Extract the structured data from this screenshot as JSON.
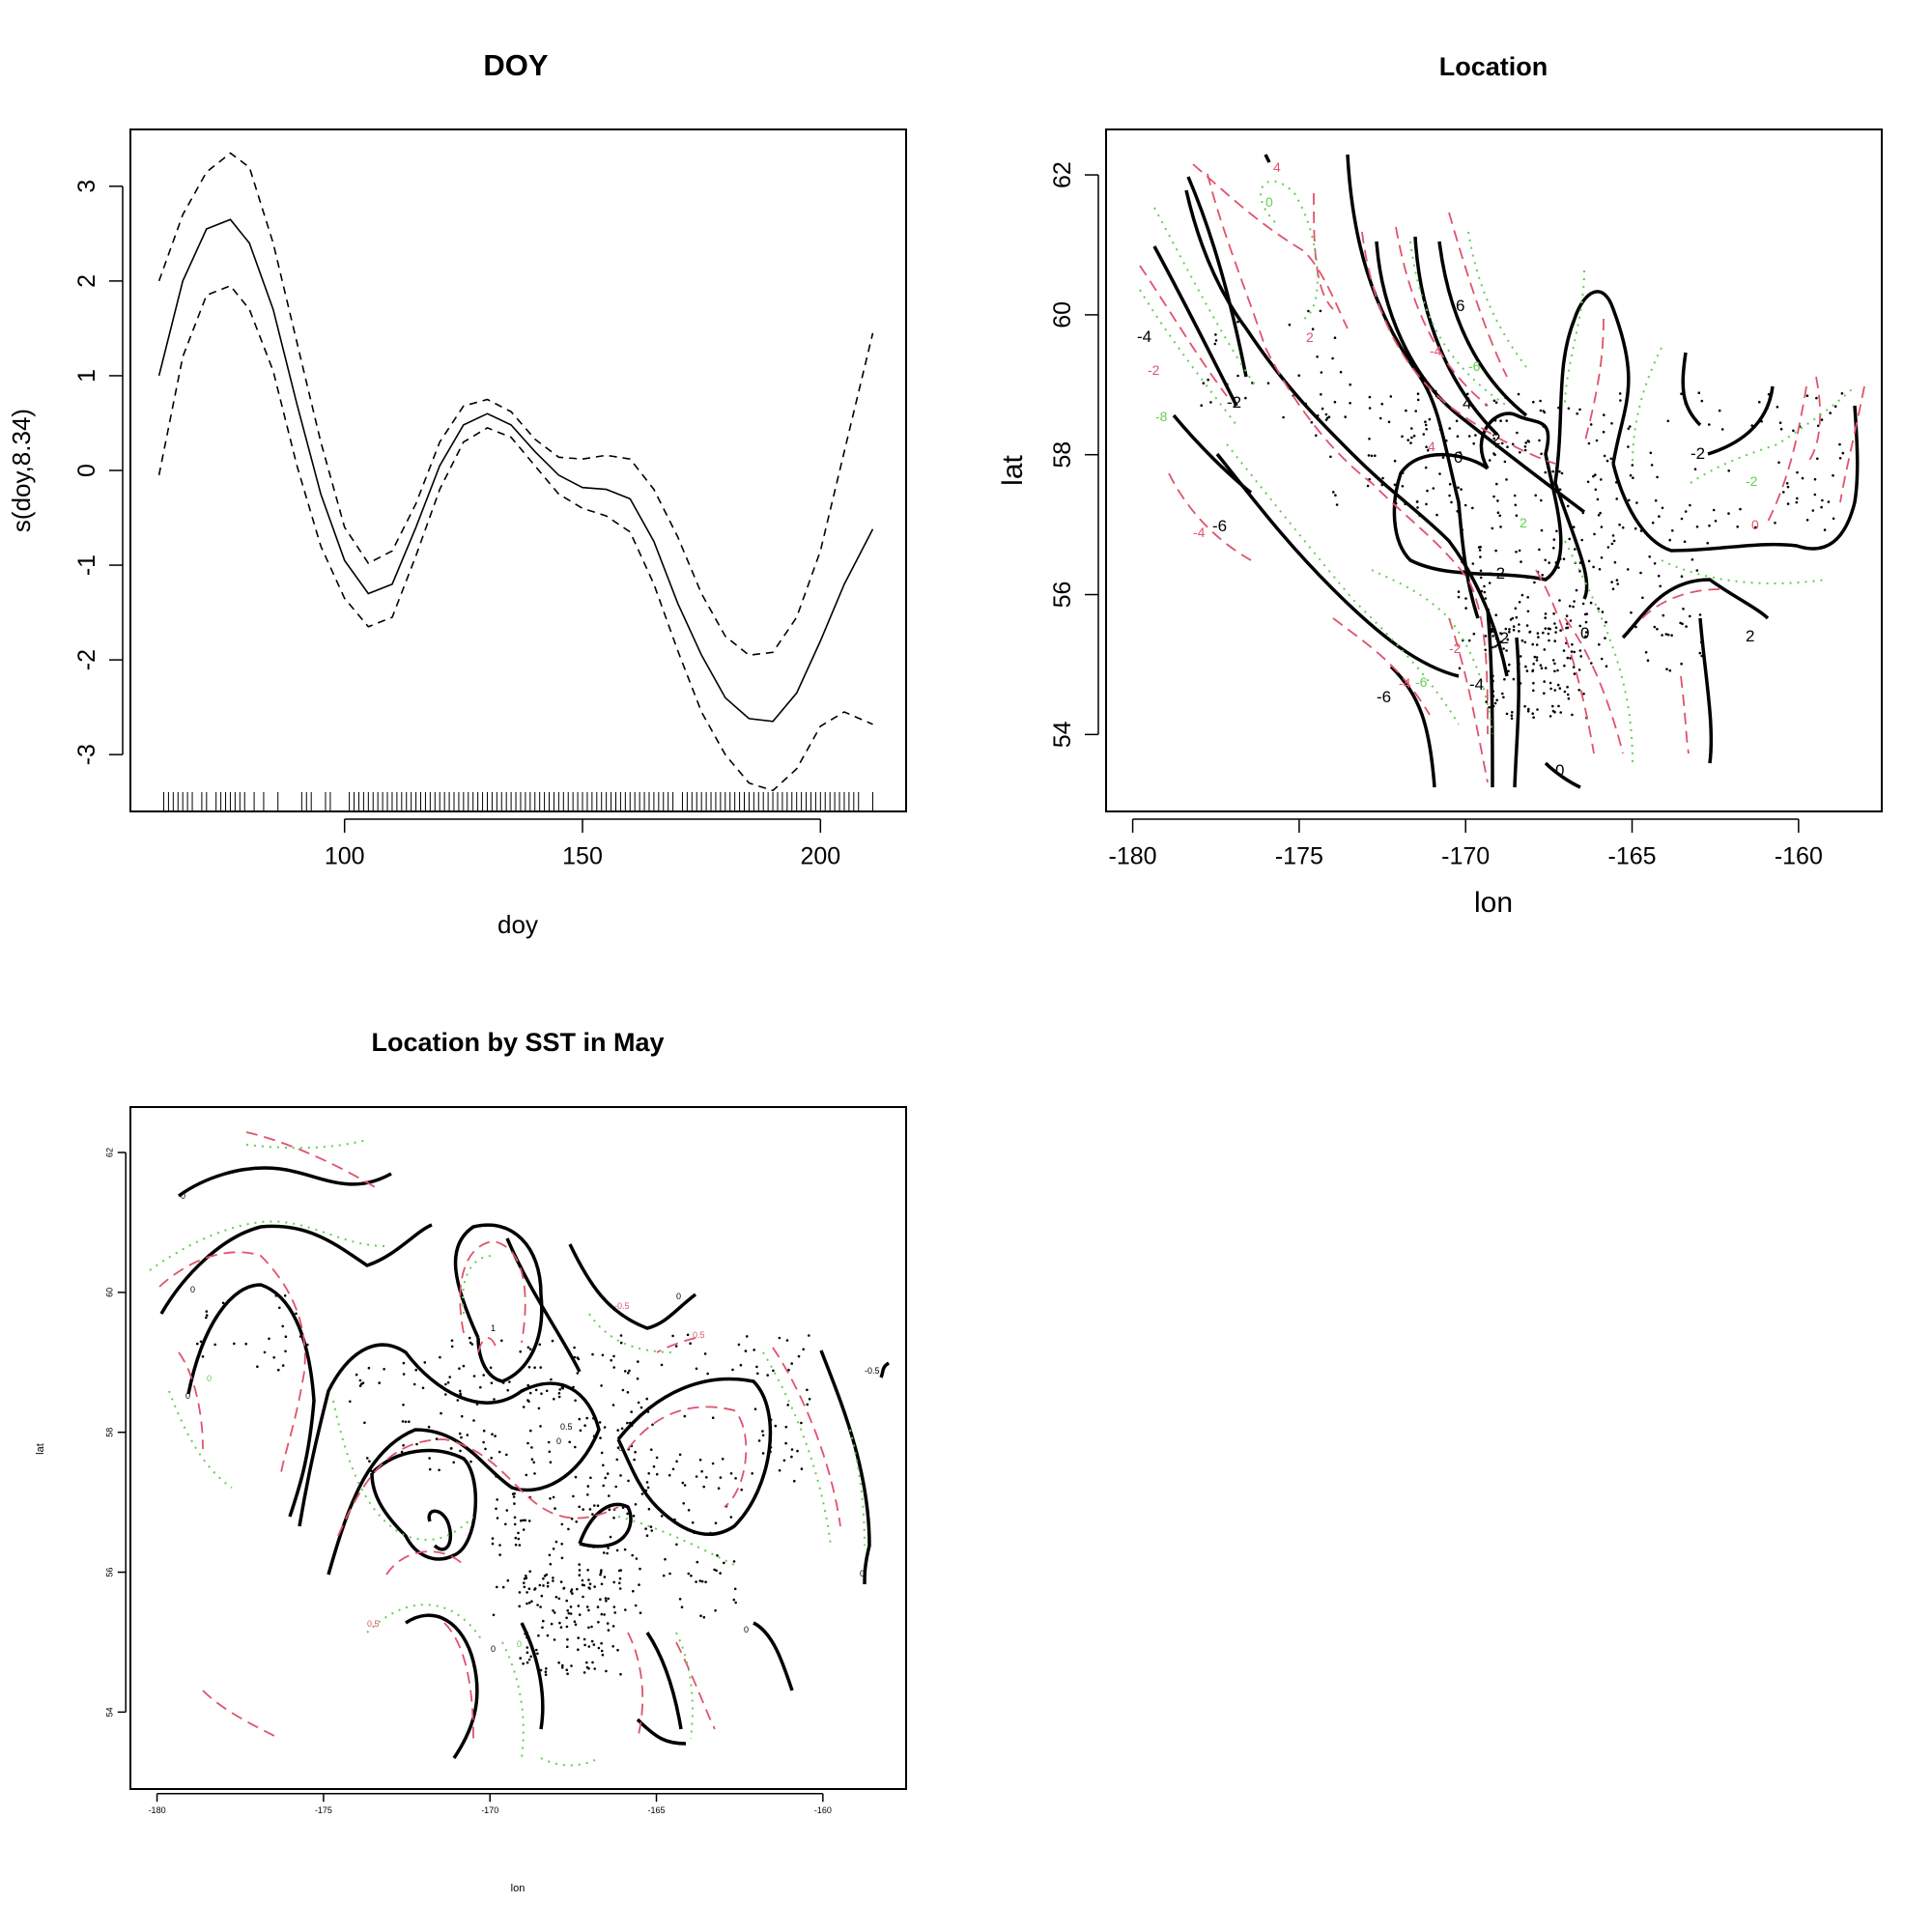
{
  "chart_data": [
    {
      "type": "line",
      "title": "DOY",
      "xlabel": "doy",
      "ylabel": "s(doy,8.34)",
      "xlim": [
        55,
        218
      ],
      "ylim": [
        -3.6,
        3.6
      ],
      "xticks": [
        100,
        150,
        200
      ],
      "yticks": [
        -3,
        -2,
        -1,
        0,
        1,
        2,
        3
      ],
      "series": [
        {
          "style": "solid",
          "x": [
            61,
            66,
            71,
            76,
            80,
            85,
            90,
            95,
            100,
            105,
            110,
            115,
            120,
            125,
            130,
            135,
            140,
            145,
            150,
            155,
            160,
            165,
            170,
            175,
            180,
            185,
            190,
            195,
            200,
            205,
            211
          ],
          "y": [
            1.0,
            2.0,
            2.55,
            2.65,
            2.4,
            1.7,
            0.7,
            -0.25,
            -0.95,
            -1.3,
            -1.2,
            -0.6,
            0.05,
            0.48,
            0.6,
            0.48,
            0.2,
            -0.05,
            -0.18,
            -0.2,
            -0.3,
            -0.75,
            -1.4,
            -1.95,
            -2.4,
            -2.62,
            -2.65,
            -2.35,
            -1.8,
            -1.2,
            -0.62
          ]
        },
        {
          "style": "dashed",
          "x": [
            61,
            66,
            71,
            76,
            80,
            85,
            90,
            95,
            100,
            105,
            110,
            115,
            120,
            125,
            130,
            135,
            140,
            145,
            150,
            155,
            160,
            165,
            170,
            175,
            180,
            185,
            190,
            195,
            200,
            205,
            211
          ],
          "y": [
            2.0,
            2.7,
            3.15,
            3.35,
            3.2,
            2.4,
            1.35,
            0.3,
            -0.6,
            -0.98,
            -0.85,
            -0.35,
            0.3,
            0.68,
            0.75,
            0.62,
            0.33,
            0.14,
            0.12,
            0.16,
            0.12,
            -0.2,
            -0.7,
            -1.3,
            -1.75,
            -1.95,
            -1.92,
            -1.55,
            -0.85,
            0.2,
            1.45
          ]
        },
        {
          "style": "dashed",
          "x": [
            61,
            66,
            71,
            76,
            80,
            85,
            90,
            95,
            100,
            105,
            110,
            115,
            120,
            125,
            130,
            135,
            140,
            145,
            150,
            155,
            160,
            165,
            170,
            175,
            180,
            185,
            190,
            195,
            200,
            205,
            211
          ],
          "y": [
            -0.05,
            1.2,
            1.85,
            1.95,
            1.7,
            1.05,
            0.05,
            -0.8,
            -1.35,
            -1.65,
            -1.55,
            -0.9,
            -0.2,
            0.3,
            0.45,
            0.35,
            0.05,
            -0.25,
            -0.4,
            -0.48,
            -0.65,
            -1.2,
            -1.9,
            -2.55,
            -3.0,
            -3.3,
            -3.38,
            -3.15,
            -2.7,
            -2.55,
            -2.68
          ]
        }
      ],
      "rug": [
        62,
        63,
        64,
        65,
        66,
        67,
        68,
        70,
        71,
        73,
        74,
        75,
        76,
        77,
        78,
        79,
        81,
        83,
        86,
        91,
        92,
        93,
        96,
        97,
        101,
        102,
        103,
        104,
        105,
        106,
        107,
        108,
        109,
        110,
        111,
        112,
        113,
        114,
        115,
        116,
        117,
        118,
        119,
        120,
        121,
        122,
        123,
        124,
        125,
        126,
        127,
        128,
        129,
        130,
        131,
        132,
        133,
        134,
        135,
        136,
        137,
        138,
        139,
        140,
        141,
        142,
        143,
        144,
        145,
        146,
        147,
        148,
        149,
        150,
        151,
        152,
        153,
        154,
        155,
        156,
        157,
        158,
        159,
        160,
        161,
        162,
        163,
        164,
        165,
        166,
        167,
        168,
        169,
        171,
        172,
        173,
        174,
        175,
        176,
        177,
        178,
        179,
        180,
        181,
        182,
        183,
        184,
        185,
        186,
        187,
        188,
        189,
        190,
        191,
        192,
        193,
        194,
        195,
        196,
        197,
        198,
        199,
        200,
        201,
        202,
        203,
        204,
        205,
        206,
        207,
        208,
        211
      ]
    },
    {
      "type": "contour",
      "title": "Location",
      "xlabel": "lon",
      "ylabel": "lat",
      "xlim": [
        -180.8,
        -157.5
      ],
      "ylim": [
        52.9,
        62.65
      ],
      "xticks": [
        -180,
        -175,
        -170,
        -165,
        -160
      ],
      "yticks": [
        54,
        56,
        58,
        60,
        62
      ],
      "contour_labels": [
        "-4",
        "-2",
        "0",
        "2",
        "4",
        "6"
      ]
    },
    {
      "type": "contour",
      "title": "Location by SST in May",
      "xlabel": "lon",
      "ylabel": "lat",
      "xlim": [
        -180.8,
        -157.5
      ],
      "ylim": [
        52.9,
        62.65
      ],
      "xticks": [
        -180,
        -175,
        -170,
        -165,
        -160
      ],
      "yticks": [
        54,
        56,
        58,
        60,
        62
      ],
      "contour_labels": [
        "0",
        "0.5",
        "-0.5",
        "1",
        "-1"
      ]
    }
  ]
}
